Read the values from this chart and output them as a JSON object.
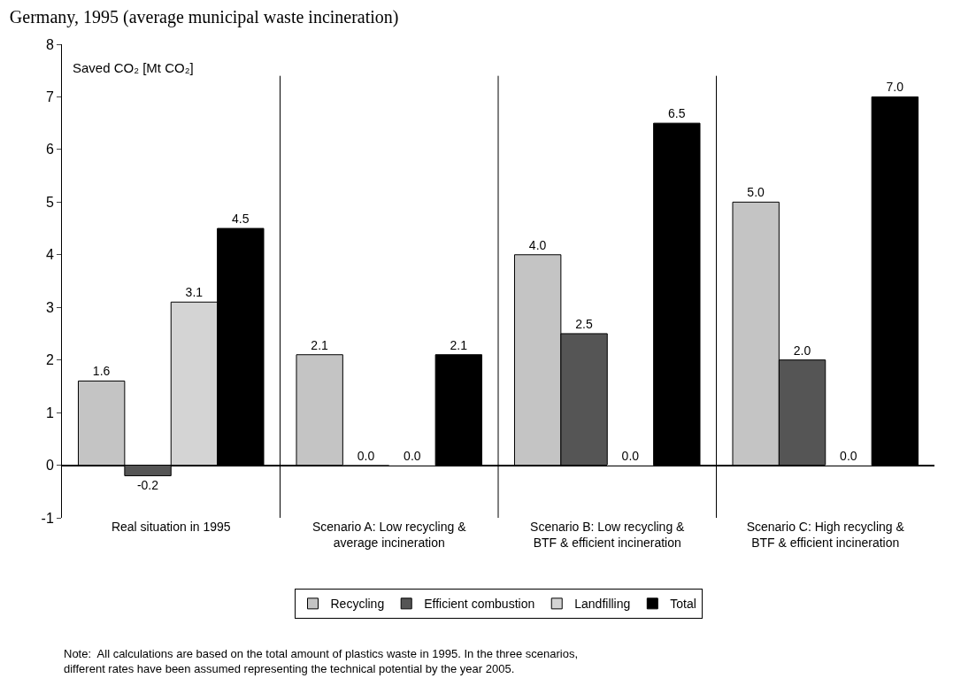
{
  "chart_data": {
    "type": "bar",
    "title": "Germany, 1995 (average municipal waste incineration)",
    "ylabel": "Saved CO₂ [Mt CO₂]",
    "categories": [
      "Real situation in 1995",
      "Scenario A: Low recycling & average incineration",
      "Scenario B: Low recycling & BTF & efficient incineration",
      "Scenario C: High recycling & BTF & efficient incineration"
    ],
    "series": [
      {
        "name": "Recycling",
        "color": "#c4c4c4",
        "values": [
          1.6,
          2.1,
          4,
          5
        ],
        "value_labels": [
          "1.6",
          "2.1",
          "4.0",
          "5.0"
        ]
      },
      {
        "name": "Efficient combustion",
        "color": "#555555",
        "values": [
          -0.2,
          0,
          2.5,
          2
        ],
        "value_labels": [
          "-0.2",
          "0.0",
          "2.5",
          "2.0"
        ]
      },
      {
        "name": "Landfilling",
        "color": "#d4d4d4",
        "values": [
          3.1,
          0,
          0,
          0
        ],
        "value_labels": [
          "3.1",
          "0.0",
          "0.0",
          "0.0"
        ]
      },
      {
        "name": "Total",
        "color": "#000000",
        "values": [
          4.5,
          2.1,
          6.5,
          7
        ],
        "value_labels": [
          "4.5",
          "2.1",
          "6.5",
          "7.0"
        ]
      }
    ],
    "ylim": [
      -1,
      8
    ],
    "yticks": [
      -1,
      0,
      1,
      2,
      3,
      4,
      5,
      6,
      7,
      8
    ],
    "legend": "bottom",
    "annotations": [
      "Note:  All calculations are based on the total amount of plastics waste in 1995. In the three scenarios, different rates have been assumed representing the technical potential by the year 2005."
    ]
  }
}
